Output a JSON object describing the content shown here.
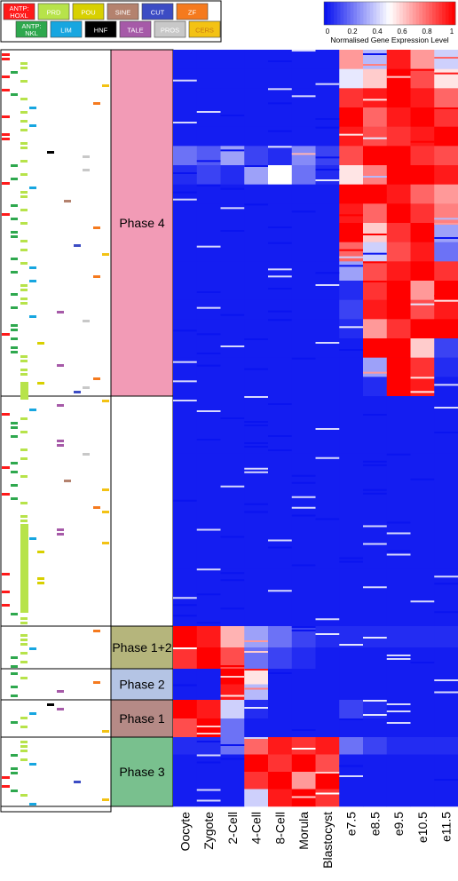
{
  "chart_data": {
    "type": "heatmap",
    "title": "",
    "colorbar": {
      "label": "Normalised Gene Expression Level",
      "ticks": [
        "0",
        "0.2",
        "0.4",
        "0.6",
        "0.8",
        "1"
      ],
      "range": [
        0,
        1
      ],
      "colors": {
        "low": "#0a14f0",
        "mid": "#ffffff",
        "high": "#ff0000"
      }
    },
    "stages": [
      "Oocyte",
      "Zygote",
      "2-Cell",
      "4-Cell",
      "8-Cell",
      "Morula",
      "Blastocyst",
      "e7.5",
      "e8.5",
      "e9.5",
      "e10.5",
      "e11.5"
    ],
    "legend": [
      {
        "label": "ANTP:\nHOXL",
        "color": "#ff1a1a",
        "text_color": "#ffffff"
      },
      {
        "label": "PRD",
        "color": "#b7e34a",
        "text_color": "#ffffff"
      },
      {
        "label": "POU",
        "color": "#d8d000",
        "text_color": "#ffffff"
      },
      {
        "label": "SINE",
        "color": "#b4826e",
        "text_color": "#ffffff"
      },
      {
        "label": "CUT",
        "color": "#3c4cc4",
        "text_color": "#ffffff"
      },
      {
        "label": "ZF",
        "color": "#f57a1e",
        "text_color": "#ffffff"
      },
      {
        "label": "ANTP:\nNKL",
        "color": "#2ea84e",
        "text_color": "#ffffff"
      },
      {
        "label": "LIM",
        "color": "#17a6e0",
        "text_color": "#ffffff"
      },
      {
        "label": "HNF",
        "color": "#000000",
        "text_color": "#ffffff"
      },
      {
        "label": "TALE",
        "color": "#a65aa8",
        "text_color": "#ffffff"
      },
      {
        "label": "PROS",
        "color": "#c8c8c8",
        "text_color": "#ffffff"
      },
      {
        "label": "CERS",
        "color": "#f3c214",
        "text_color": "#c87a14"
      }
    ],
    "phases": [
      {
        "label": "Phase 4",
        "color": "#f29bb6",
        "band": "phase4"
      },
      {
        "label": "",
        "color": "#ffffff",
        "band": "unassigned"
      },
      {
        "label": "Phase 1+2",
        "color": "#b5b57c",
        "band": "phase12"
      },
      {
        "label": "Phase 2",
        "color": "#b4c4e4",
        "band": "phase2"
      },
      {
        "label": "Phase 1",
        "color": "#b58a86",
        "band": "phase1"
      },
      {
        "label": "Phase 3",
        "color": "#79c08e",
        "band": "phase3"
      }
    ],
    "blocks": [
      {
        "phase": "phase4",
        "values": [
          [
            0.02,
            0.02,
            0.02,
            0.02,
            0.02,
            0.02,
            0.02,
            0.7,
            0.35,
            0.95,
            0.7,
            0.4
          ],
          [
            0.02,
            0.02,
            0.02,
            0.02,
            0.02,
            0.02,
            0.02,
            0.45,
            0.6,
            1.0,
            0.85,
            0.55
          ],
          [
            0.02,
            0.02,
            0.02,
            0.02,
            0.02,
            0.02,
            0.02,
            0.9,
            0.95,
            1.0,
            0.95,
            0.8
          ],
          [
            0.02,
            0.02,
            0.02,
            0.02,
            0.02,
            0.02,
            0.02,
            1.0,
            0.8,
            0.95,
            1.0,
            0.9
          ],
          [
            0.02,
            0.02,
            0.02,
            0.02,
            0.02,
            0.02,
            0.02,
            0.95,
            0.85,
            0.9,
            0.95,
            1.0
          ],
          [
            0.2,
            0.15,
            0.3,
            0.1,
            0.05,
            0.25,
            0.1,
            0.85,
            1.0,
            1.0,
            0.9,
            0.85
          ],
          [
            0.05,
            0.1,
            0.05,
            0.3,
            0.5,
            0.2,
            0.05,
            0.55,
            0.75,
            1.0,
            1.0,
            0.95
          ],
          [
            0.02,
            0.02,
            0.02,
            0.02,
            0.02,
            0.02,
            0.02,
            1.0,
            1.0,
            0.95,
            0.8,
            0.7
          ],
          [
            0.02,
            0.02,
            0.02,
            0.02,
            0.02,
            0.02,
            0.02,
            0.95,
            0.8,
            1.0,
            0.9,
            0.75
          ],
          [
            0.02,
            0.02,
            0.02,
            0.02,
            0.02,
            0.02,
            0.02,
            1.0,
            0.6,
            0.9,
            1.0,
            0.3
          ],
          [
            0.02,
            0.02,
            0.02,
            0.02,
            0.02,
            0.02,
            0.02,
            0.8,
            0.4,
            0.85,
            0.95,
            0.2
          ],
          [
            0.02,
            0.02,
            0.02,
            0.02,
            0.02,
            0.02,
            0.02,
            0.3,
            0.85,
            0.95,
            1.0,
            0.9
          ],
          [
            0.02,
            0.02,
            0.02,
            0.02,
            0.02,
            0.02,
            0.02,
            0.05,
            0.9,
            1.0,
            0.7,
            1.0
          ],
          [
            0.02,
            0.02,
            0.02,
            0.02,
            0.02,
            0.02,
            0.02,
            0.1,
            0.95,
            1.0,
            0.85,
            0.95
          ],
          [
            0.02,
            0.02,
            0.02,
            0.02,
            0.02,
            0.02,
            0.02,
            0.05,
            0.7,
            0.9,
            1.0,
            1.0
          ],
          [
            0.02,
            0.02,
            0.02,
            0.02,
            0.02,
            0.02,
            0.02,
            0.02,
            1.0,
            1.0,
            0.6,
            0.1
          ],
          [
            0.02,
            0.02,
            0.02,
            0.02,
            0.02,
            0.02,
            0.02,
            0.02,
            0.3,
            1.0,
            0.9,
            0.05
          ],
          [
            0.02,
            0.02,
            0.02,
            0.02,
            0.02,
            0.02,
            0.02,
            0.02,
            0.05,
            1.0,
            0.95,
            0.02
          ]
        ]
      },
      {
        "phase": "unassigned",
        "values": [
          [
            0.02,
            0.02,
            0.02,
            0.02,
            0.02,
            0.02,
            0.02,
            0.02,
            0.02,
            0.02,
            0.02,
            0.02
          ],
          [
            0.02,
            0.02,
            0.02,
            0.02,
            0.02,
            0.02,
            0.02,
            0.02,
            0.02,
            0.02,
            0.02,
            0.02
          ],
          [
            0.02,
            0.02,
            0.02,
            0.02,
            0.02,
            0.02,
            0.02,
            0.02,
            0.02,
            0.02,
            0.02,
            0.02
          ],
          [
            0.02,
            0.02,
            0.02,
            0.02,
            0.02,
            0.02,
            0.02,
            0.02,
            0.02,
            0.02,
            0.02,
            0.02
          ]
        ]
      },
      {
        "phase": "phase12",
        "values": [
          [
            1.0,
            0.95,
            0.65,
            0.3,
            0.2,
            0.1,
            0.05,
            0.05,
            0.05,
            0.05,
            0.05,
            0.05
          ],
          [
            0.9,
            1.0,
            0.85,
            0.2,
            0.1,
            0.05,
            0.02,
            0.02,
            0.02,
            0.02,
            0.02,
            0.02
          ]
        ]
      },
      {
        "phase": "phase2",
        "values": [
          [
            0.02,
            0.02,
            1.0,
            0.55,
            0.02,
            0.02,
            0.02,
            0.02,
            0.02,
            0.02,
            0.02,
            0.02
          ],
          [
            0.02,
            0.02,
            0.95,
            0.35,
            0.02,
            0.02,
            0.02,
            0.02,
            0.02,
            0.02,
            0.02,
            0.02
          ]
        ]
      },
      {
        "phase": "phase1",
        "values": [
          [
            1.0,
            0.95,
            0.4,
            0.05,
            0.02,
            0.02,
            0.02,
            0.1,
            0.05,
            0.02,
            0.02,
            0.02
          ],
          [
            0.85,
            1.0,
            0.2,
            0.02,
            0.02,
            0.02,
            0.02,
            0.02,
            0.02,
            0.02,
            0.02,
            0.02
          ]
        ]
      },
      {
        "phase": "phase3",
        "values": [
          [
            0.05,
            0.05,
            0.2,
            0.8,
            0.95,
            0.9,
            0.95,
            0.2,
            0.1,
            0.05,
            0.05,
            0.05
          ],
          [
            0.02,
            0.02,
            0.02,
            1.0,
            0.9,
            1.0,
            0.85,
            0.02,
            0.02,
            0.02,
            0.02,
            0.02
          ],
          [
            0.02,
            0.02,
            0.02,
            0.9,
            1.0,
            0.7,
            1.0,
            0.02,
            0.02,
            0.02,
            0.02,
            0.02
          ],
          [
            0.02,
            0.02,
            0.02,
            0.4,
            0.95,
            1.0,
            0.9,
            0.02,
            0.02,
            0.02,
            0.02,
            0.02
          ]
        ]
      }
    ]
  }
}
